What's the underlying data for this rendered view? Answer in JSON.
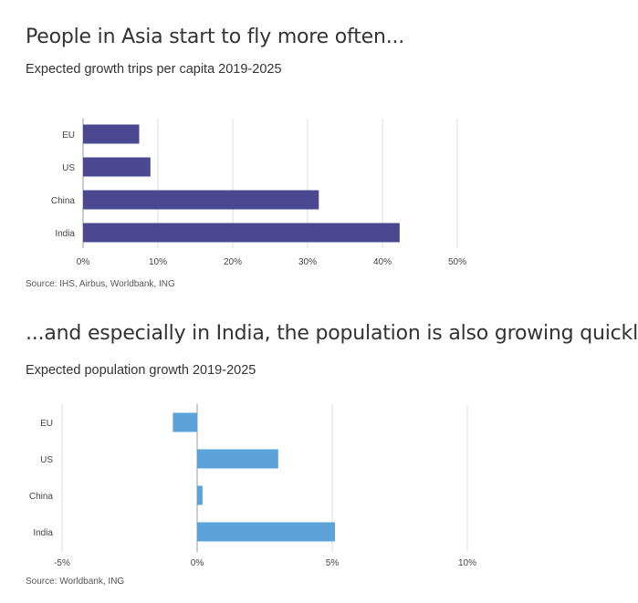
{
  "chart_data": [
    {
      "type": "bar",
      "orientation": "horizontal",
      "title": "People in Asia start to fly more often...",
      "subtitle": "Expected growth trips per capita 2019-2025",
      "source": "Source: IHS, Airbus, Worldbank, ING",
      "categories": [
        "EU",
        "US",
        "China",
        "India"
      ],
      "values": [
        7.5,
        9,
        31.5,
        42.3
      ],
      "xlim": [
        0,
        50
      ],
      "xticks": [
        "0%",
        "10%",
        "20%",
        "30%",
        "40%",
        "50%"
      ],
      "grid": true,
      "color": "#4b4790"
    },
    {
      "type": "bar",
      "orientation": "horizontal",
      "title": "...and especially in India, the population is also growing quickly",
      "subtitle": "Expected population growth 2019-2025",
      "source": "Source: Worldbank, ING",
      "categories": [
        "EU",
        "US",
        "China",
        "India"
      ],
      "values": [
        -0.9,
        3.0,
        0.2,
        5.1
      ],
      "xlim": [
        -5,
        10
      ],
      "xticks": [
        "-5%",
        "0%",
        "5%",
        "10%"
      ],
      "grid": true,
      "color": "#5ba3d9"
    }
  ]
}
